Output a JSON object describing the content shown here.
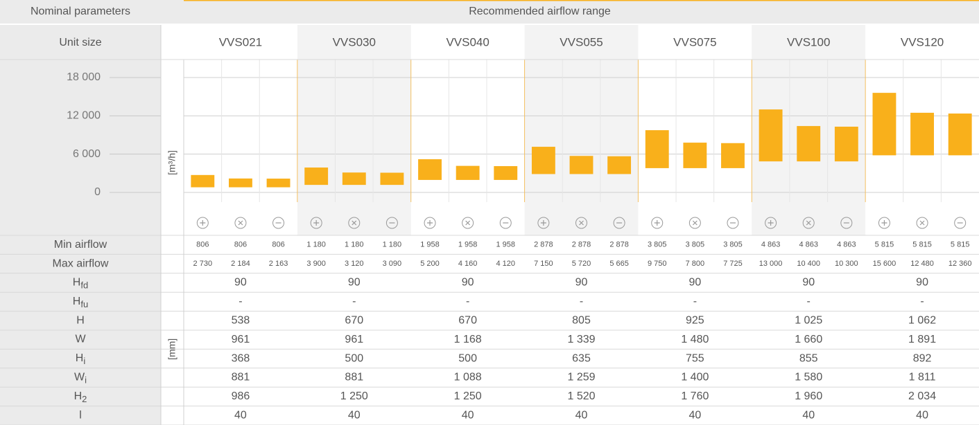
{
  "header": {
    "left": "Nominal parameters",
    "right": "Recommended airflow range"
  },
  "unit_size_label": "Unit size",
  "chart_data": {
    "type": "range_bar",
    "y_unit": "[m³/h]",
    "color": "#f9b01b",
    "ylim": [
      0,
      18000
    ],
    "yticks": [
      0,
      {
        "value": 6000,
        "label": "6 000"
      },
      {
        "value": 12000,
        "label": "12 000"
      },
      {
        "value": 18000,
        "label": "18 000"
      }
    ],
    "min_label": "Min airflow",
    "max_label": "Max airflow",
    "units": [
      {
        "name": "VVS021",
        "min_values": [
          806,
          806,
          806
        ],
        "min_labels": [
          "806",
          "806",
          "806"
        ],
        "max_values": [
          2730,
          2184,
          2163
        ],
        "max_labels": [
          "2 730",
          "2 184",
          "2 163"
        ]
      },
      {
        "name": "VVS030",
        "min_values": [
          1180,
          1180,
          1180
        ],
        "min_labels": [
          "1 180",
          "1 180",
          "1 180"
        ],
        "max_values": [
          3900,
          3120,
          3090
        ],
        "max_labels": [
          "3 900",
          "3 120",
          "3 090"
        ]
      },
      {
        "name": "VVS040",
        "min_values": [
          1958,
          1958,
          1958
        ],
        "min_labels": [
          "1 958",
          "1 958",
          "1 958"
        ],
        "max_values": [
          5200,
          4160,
          4120
        ],
        "max_labels": [
          "5 200",
          "4 160",
          "4 120"
        ]
      },
      {
        "name": "VVS055",
        "min_values": [
          2878,
          2878,
          2878
        ],
        "min_labels": [
          "2 878",
          "2 878",
          "2 878"
        ],
        "max_values": [
          7150,
          5720,
          5665
        ],
        "max_labels": [
          "7 150",
          "5 720",
          "5 665"
        ]
      },
      {
        "name": "VVS075",
        "min_values": [
          3805,
          3805,
          3805
        ],
        "min_labels": [
          "3 805",
          "3 805",
          "3 805"
        ],
        "max_values": [
          9750,
          7800,
          7725
        ],
        "max_labels": [
          "9 750",
          "7 800",
          "7 725"
        ]
      },
      {
        "name": "VVS100",
        "min_values": [
          4863,
          4863,
          4863
        ],
        "min_labels": [
          "4 863",
          "4 863",
          "4 863"
        ],
        "max_values": [
          13000,
          10400,
          10300
        ],
        "max_labels": [
          "13 000",
          "10 400",
          "10 300"
        ]
      },
      {
        "name": "VVS120",
        "min_values": [
          5815,
          5815,
          5815
        ],
        "min_labels": [
          "5 815",
          "5 815",
          "5 815"
        ],
        "max_values": [
          15600,
          12480,
          12360
        ],
        "max_labels": [
          "15 600",
          "12 480",
          "12 360"
        ]
      }
    ]
  },
  "dimension_unit": "[mm]",
  "parameters": [
    {
      "label": "H",
      "sub": "fd",
      "values": [
        "90",
        "90",
        "90",
        "90",
        "90",
        "90",
        "90"
      ]
    },
    {
      "label": "H",
      "sub": "fu",
      "values": [
        "-",
        "-",
        "-",
        "-",
        "-",
        "-",
        "-"
      ]
    },
    {
      "label": "H",
      "values": [
        "538",
        "670",
        "670",
        "805",
        "925",
        "1 025",
        "1 062"
      ]
    },
    {
      "label": "W",
      "values": [
        "961",
        "961",
        "1 168",
        "1 339",
        "1 480",
        "1 660",
        "1 891"
      ]
    },
    {
      "label": "H",
      "sub": "i",
      "values": [
        "368",
        "500",
        "500",
        "635",
        "755",
        "855",
        "892"
      ]
    },
    {
      "label": "W",
      "sub": "i",
      "values": [
        "881",
        "881",
        "1 088",
        "1 259",
        "1 400",
        "1 580",
        "1 811"
      ]
    },
    {
      "label": "H",
      "sub": "2",
      "values": [
        "986",
        "1 250",
        "1 250",
        "1 520",
        "1 760",
        "1 960",
        "2 034"
      ]
    },
    {
      "label": "l",
      "values": [
        "40",
        "40",
        "40",
        "40",
        "40",
        "40",
        "40"
      ]
    }
  ]
}
